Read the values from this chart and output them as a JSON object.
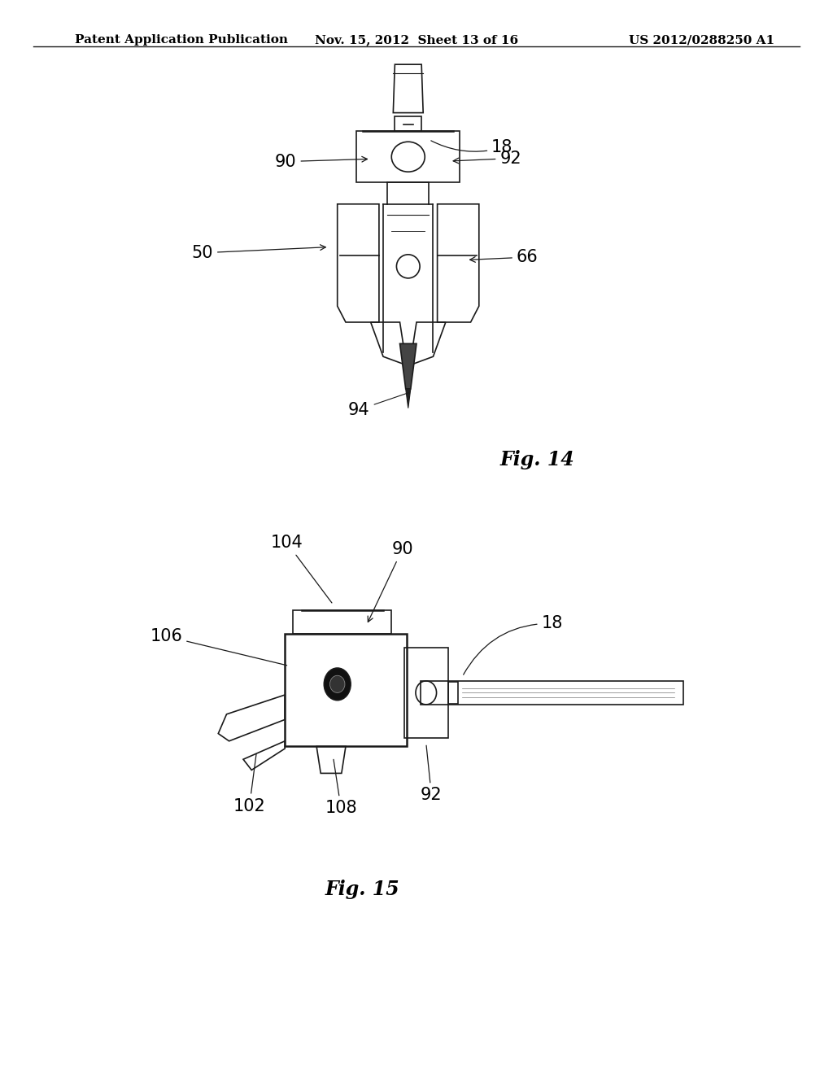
{
  "bg_color": "#ffffff",
  "header_left": "Patent Application Publication",
  "header_mid": "Nov. 15, 2012  Sheet 13 of 16",
  "header_right": "US 2012/0288250 A1",
  "fig14_label": "Fig. 14",
  "fig15_label": "Fig. 15",
  "line_color": "#1a1a1a",
  "text_color": "#000000",
  "header_fontsize": 11,
  "annotation_fontsize": 15,
  "fig_label_fontsize": 17
}
